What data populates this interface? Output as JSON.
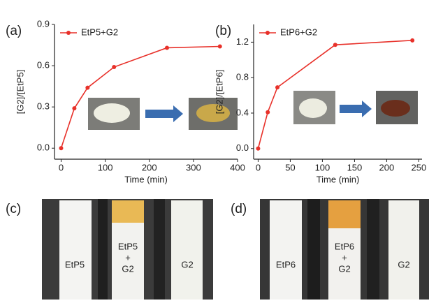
{
  "chart_data": [
    {
      "type": "line",
      "panel": "(a)",
      "x_label": "Time (min)",
      "y_label": "[G2]/[EtP5]",
      "series": [
        {
          "name": "EtP5+G2",
          "color": "#e8312a",
          "x": [
            0,
            30,
            60,
            120,
            240,
            360
          ],
          "values": [
            0,
            0.29,
            0.44,
            0.59,
            0.73,
            0.74
          ]
        }
      ],
      "xlim": [
        -15,
        400
      ],
      "xticks": [
        0,
        100,
        200,
        300,
        400
      ],
      "ylim": [
        -0.08,
        0.9
      ],
      "yticks": [
        {
          "value": 0,
          "label": "0.0"
        },
        0.3,
        0.6,
        0.9
      ],
      "legend": "upper left"
    },
    {
      "type": "line",
      "panel": "(b)",
      "x_label": "Time (min)",
      "y_label": "[G2]/[EtP6]",
      "series": [
        {
          "name": "EtP6+G2",
          "color": "#e8312a",
          "x": [
            0,
            15,
            30,
            120,
            240
          ],
          "values": [
            0,
            0.41,
            0.69,
            1.17,
            1.22
          ]
        }
      ],
      "xlim": [
        -7,
        255
      ],
      "xticks": [
        0,
        50,
        100,
        150,
        200,
        250
      ],
      "ylim": [
        -0.12,
        1.4
      ],
      "yticks": [
        {
          "value": 0,
          "label": "0.0"
        },
        0.4,
        0.8,
        1.2
      ],
      "legend": "upper left"
    }
  ],
  "photos": [
    {
      "panel": "(c)",
      "strips": [
        [
          "EtP5"
        ],
        [
          "EtP5",
          "+",
          "G2"
        ],
        [
          "G2"
        ]
      ]
    },
    {
      "panel": "(d)",
      "strips": [
        [
          "EtP6"
        ],
        [
          "EtP6",
          "+",
          "G2"
        ],
        [
          "G2"
        ]
      ]
    }
  ]
}
